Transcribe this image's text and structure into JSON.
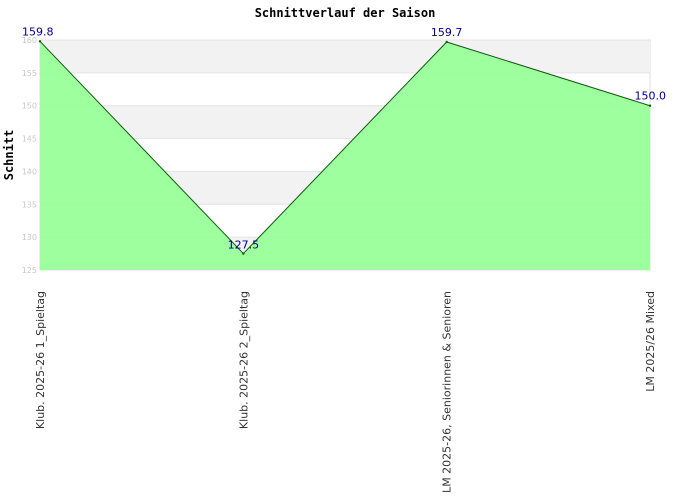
{
  "chart_data": {
    "type": "area",
    "title": "Schnittverlauf der Saison",
    "xlabel": "",
    "ylabel": "Schnitt",
    "categories": [
      "Klub. 2025-26  1_Spieltag",
      "Klub. 2025-26  2_Spieltag",
      "LM 2025-26, Seniorinnen & Senioren",
      "LM 2025/26 Mixed"
    ],
    "series": [
      {
        "values": [
          159.8,
          127.5,
          159.7,
          150.0
        ]
      }
    ],
    "data_labels": [
      "159.8",
      "127.5",
      "159.7",
      "150.0"
    ],
    "ylim": [
      125,
      160
    ],
    "yticks": [
      125,
      130,
      135,
      140,
      145,
      150,
      155,
      160
    ],
    "grid": true,
    "colors": {
      "fill": "#99ff99",
      "line": "#006600",
      "band": "#f2f2f2",
      "label": "#000080"
    }
  }
}
